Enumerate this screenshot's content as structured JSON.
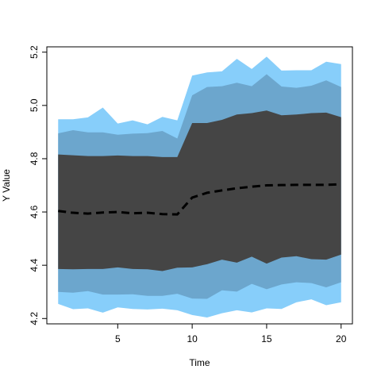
{
  "chart_data": {
    "type": "area",
    "xlabel": "Time",
    "ylabel": "Y Value",
    "xlim": [
      0.24,
      20.76
    ],
    "ylim": [
      4.18,
      5.22
    ],
    "x_ticks": [
      5,
      10,
      15,
      20
    ],
    "x_tick_labels": [
      "5",
      "10",
      "15",
      "20"
    ],
    "y_ticks": [
      4.2,
      4.4,
      4.6,
      4.8,
      5.0,
      5.2
    ],
    "y_tick_labels": [
      "4.2",
      "4.4",
      "4.6",
      "4.8",
      "5.0",
      "5.2"
    ],
    "x": [
      1,
      2,
      3,
      4,
      5,
      6,
      7,
      8,
      9,
      10,
      11,
      12,
      13,
      14,
      15,
      16,
      17,
      18,
      19,
      20
    ],
    "bands": [
      {
        "color": "#87CEFA",
        "upper": [
          4.948,
          4.948,
          4.955,
          4.992,
          4.932,
          4.944,
          4.929,
          4.957,
          4.944,
          5.112,
          5.124,
          5.128,
          5.175,
          5.137,
          5.183,
          5.131,
          5.132,
          5.132,
          5.164,
          5.155
        ],
        "lower": [
          4.255,
          4.235,
          4.238,
          4.222,
          4.242,
          4.236,
          4.234,
          4.237,
          4.231,
          4.213,
          4.204,
          4.22,
          4.231,
          4.223,
          4.238,
          4.236,
          4.261,
          4.272,
          4.25,
          4.261
        ]
      },
      {
        "color": "#6CA6CD",
        "upper": [
          4.895,
          4.907,
          4.899,
          4.899,
          4.89,
          4.894,
          4.896,
          4.904,
          4.876,
          5.038,
          5.069,
          5.072,
          5.085,
          5.072,
          5.117,
          5.071,
          5.066,
          5.074,
          5.094,
          5.069
        ],
        "lower": [
          4.3,
          4.297,
          4.303,
          4.29,
          4.29,
          4.291,
          4.285,
          4.285,
          4.293,
          4.275,
          4.274,
          4.306,
          4.301,
          4.33,
          4.31,
          4.328,
          4.336,
          4.333,
          4.317,
          4.336
        ]
      },
      {
        "color": "#454545",
        "upper": [
          4.816,
          4.813,
          4.81,
          4.81,
          4.812,
          4.81,
          4.81,
          4.806,
          4.806,
          4.934,
          4.934,
          4.946,
          4.966,
          4.971,
          4.981,
          4.963,
          4.966,
          4.971,
          4.973,
          4.956
        ],
        "lower": [
          4.386,
          4.385,
          4.386,
          4.386,
          4.392,
          4.386,
          4.385,
          4.378,
          4.391,
          4.392,
          4.404,
          4.421,
          4.41,
          4.432,
          4.406,
          4.429,
          4.434,
          4.423,
          4.421,
          4.44
        ]
      }
    ],
    "series": [
      {
        "style": "dashed",
        "color": "#000000",
        "values": [
          4.604,
          4.597,
          4.594,
          4.598,
          4.6,
          4.595,
          4.597,
          4.592,
          4.591,
          4.654,
          4.672,
          4.681,
          4.689,
          4.695,
          4.7,
          4.701,
          4.702,
          4.702,
          4.702,
          4.704
        ]
      }
    ]
  }
}
